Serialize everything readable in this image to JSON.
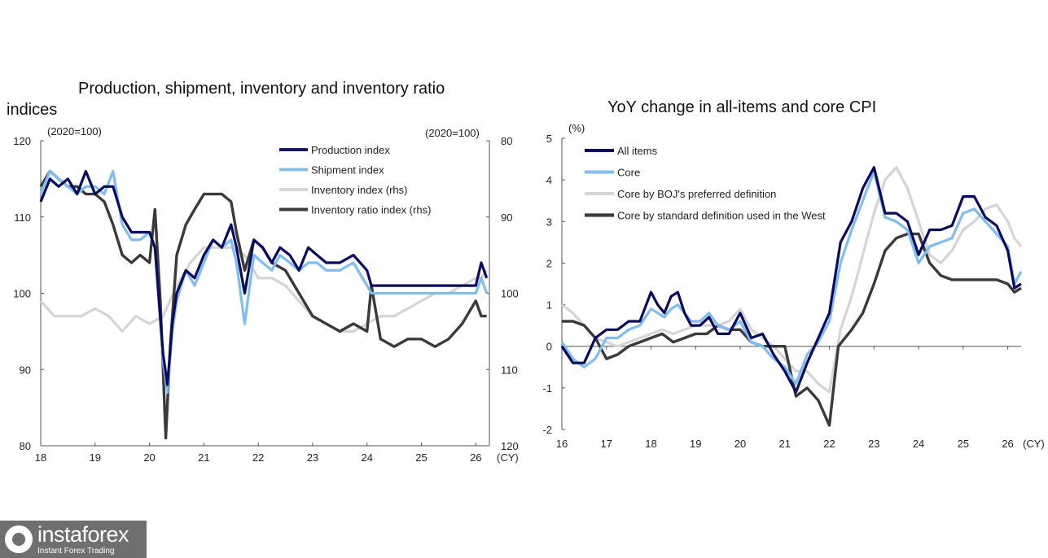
{
  "chart_data": [
    {
      "type": "line",
      "title": "Production, shipment, inventory and inventory ratio",
      "title_prefix": "indices",
      "left_unit": "(2020=100)",
      "right_unit": "(2020=100)",
      "x_unit": "(CY)",
      "xlim": [
        2018,
        2026.25
      ],
      "ylim_left": [
        80,
        120
      ],
      "ylim_right_inverted": [
        80,
        120
      ],
      "x_ticks": [
        {
          "v": 2018,
          "label": "18"
        },
        {
          "v": 2019,
          "label": "19"
        },
        {
          "v": 2020,
          "label": "20"
        },
        {
          "v": 2021,
          "label": "21"
        },
        {
          "v": 2022,
          "label": "22"
        },
        {
          "v": 2023,
          "label": "23"
        },
        {
          "v": 2024,
          "label": "24"
        },
        {
          "v": 2025,
          "label": "25"
        },
        {
          "v": 2026,
          "label": "26"
        }
      ],
      "y_ticks_left": [
        {
          "v": 80,
          "label": "80"
        },
        {
          "v": 90,
          "label": "90"
        },
        {
          "v": 100,
          "label": "100"
        },
        {
          "v": 110,
          "label": "110"
        },
        {
          "v": 120,
          "label": "120"
        }
      ],
      "y_ticks_right": [
        {
          "v": 80,
          "label": "80"
        },
        {
          "v": 90,
          "label": "90"
        },
        {
          "v": 100,
          "label": "100"
        },
        {
          "v": 110,
          "label": "110"
        },
        {
          "v": 120,
          "label": "120"
        }
      ],
      "series": [
        {
          "name": "Production index",
          "color": "#0a0a5e",
          "width": 3.2,
          "axis": "left",
          "x": [
            2018,
            2018.17,
            2018.33,
            2018.5,
            2018.67,
            2018.83,
            2019,
            2019.17,
            2019.33,
            2019.5,
            2019.67,
            2019.83,
            2020,
            2020.1,
            2020.25,
            2020.33,
            2020.42,
            2020.5,
            2020.67,
            2020.83,
            2021,
            2021.17,
            2021.33,
            2021.5,
            2021.6,
            2021.75,
            2021.92,
            2022.08,
            2022.25,
            2022.4,
            2022.58,
            2022.75,
            2022.92,
            2023.08,
            2023.25,
            2023.5,
            2023.75,
            2024,
            2024.08,
            2024.25,
            2024.5,
            2024.75,
            2025,
            2025.25,
            2025.5,
            2025.75,
            2026,
            2026.1,
            2026.2
          ],
          "values": [
            112,
            115,
            114,
            115,
            113,
            116,
            113,
            114,
            114,
            110,
            108,
            108,
            108,
            106,
            92,
            88,
            96,
            100,
            103,
            102,
            105,
            107,
            106,
            109,
            106,
            100,
            107,
            106,
            104,
            106,
            105,
            103,
            106,
            105,
            104,
            104,
            105,
            103,
            101,
            101,
            101,
            101,
            101,
            101,
            101,
            101,
            101,
            104,
            102
          ]
        },
        {
          "name": "Shipment index",
          "color": "#7fbdf0",
          "width": 3.2,
          "axis": "left",
          "x": [
            2018,
            2018.17,
            2018.33,
            2018.5,
            2018.67,
            2018.83,
            2019,
            2019.17,
            2019.33,
            2019.5,
            2019.67,
            2019.83,
            2020,
            2020.1,
            2020.25,
            2020.33,
            2020.42,
            2020.5,
            2020.67,
            2020.83,
            2021,
            2021.17,
            2021.33,
            2021.5,
            2021.6,
            2021.75,
            2021.92,
            2022.08,
            2022.25,
            2022.4,
            2022.58,
            2022.75,
            2022.92,
            2023.08,
            2023.25,
            2023.5,
            2023.75,
            2024,
            2024.08,
            2024.25,
            2024.5,
            2024.75,
            2025,
            2025.25,
            2025.5,
            2025.75,
            2026,
            2026.1,
            2026.2
          ],
          "values": [
            113,
            116,
            115,
            114,
            113,
            114,
            114,
            113,
            116,
            109,
            107,
            107,
            108,
            106,
            91,
            87,
            95,
            99,
            103,
            101,
            104,
            107,
            106,
            107,
            104,
            96,
            105,
            104,
            103,
            105,
            104,
            103,
            104,
            104,
            103,
            103,
            104,
            101,
            100,
            100,
            100,
            100,
            100,
            100,
            100,
            100,
            100,
            102,
            100
          ]
        },
        {
          "name": "Inventory index (rhs)",
          "color": "#d5d5d5",
          "width": 3.2,
          "axis": "right",
          "x": [
            2018,
            2018.25,
            2018.5,
            2018.75,
            2019,
            2019.25,
            2019.5,
            2019.75,
            2020,
            2020.25,
            2020.5,
            2020.75,
            2021,
            2021.25,
            2021.5,
            2021.75,
            2022,
            2022.25,
            2022.5,
            2022.75,
            2023,
            2023.25,
            2023.5,
            2023.75,
            2024,
            2024.25,
            2024.5,
            2024.75,
            2025,
            2025.25,
            2025.5,
            2025.75,
            2026,
            2026.1,
            2026.2
          ],
          "values": [
            101,
            103,
            103,
            103,
            102,
            103,
            105,
            103,
            104,
            103,
            99,
            96,
            94,
            94,
            94,
            95,
            98,
            98,
            99,
            101,
            103,
            104,
            105,
            105,
            104,
            103,
            103,
            102,
            101,
            100,
            100,
            99,
            98,
            98,
            97
          ]
        },
        {
          "name": "Inventory ratio index (rhs)",
          "color": "#3a3a3a",
          "width": 3.4,
          "axis": "right",
          "x": [
            2018,
            2018.17,
            2018.33,
            2018.5,
            2018.67,
            2018.83,
            2019,
            2019.17,
            2019.33,
            2019.5,
            2019.67,
            2019.83,
            2020,
            2020.1,
            2020.2,
            2020.3,
            2020.38,
            2020.5,
            2020.67,
            2020.83,
            2021,
            2021.17,
            2021.33,
            2021.5,
            2021.6,
            2021.75,
            2021.92,
            2022.08,
            2022.25,
            2022.5,
            2022.75,
            2023,
            2023.25,
            2023.5,
            2023.75,
            2024,
            2024.08,
            2024.25,
            2024.5,
            2024.75,
            2025,
            2025.25,
            2025.5,
            2025.75,
            2026,
            2026.1,
            2026.2
          ],
          "values": [
            86,
            84,
            85,
            86,
            86,
            87,
            87,
            88,
            91,
            95,
            96,
            95,
            96,
            89,
            101,
            119,
            107,
            95,
            91,
            89,
            87,
            87,
            87,
            88,
            92,
            97,
            93,
            94,
            96,
            97,
            100,
            103,
            104,
            105,
            104,
            105,
            99,
            106,
            107,
            106,
            106,
            107,
            106,
            104,
            101,
            103,
            103
          ]
        }
      ]
    },
    {
      "type": "line",
      "title": "YoY change in all-items and core CPI",
      "left_unit": "(%)",
      "x_unit": "(CY)",
      "xlim": [
        2016,
        2026.3
      ],
      "ylim": [
        -2,
        5
      ],
      "x_ticks": [
        {
          "v": 2016,
          "label": "16"
        },
        {
          "v": 2017,
          "label": "17"
        },
        {
          "v": 2018,
          "label": "18"
        },
        {
          "v": 2019,
          "label": "19"
        },
        {
          "v": 2020,
          "label": "20"
        },
        {
          "v": 2021,
          "label": "21"
        },
        {
          "v": 2022,
          "label": "22"
        },
        {
          "v": 2023,
          "label": "23"
        },
        {
          "v": 2024,
          "label": "24"
        },
        {
          "v": 2025,
          "label": "25"
        },
        {
          "v": 2026,
          "label": "26"
        }
      ],
      "y_ticks": [
        {
          "v": -2,
          "label": "-2"
        },
        {
          "v": -1,
          "label": "-1"
        },
        {
          "v": 0,
          "label": "0"
        },
        {
          "v": 1,
          "label": "1"
        },
        {
          "v": 2,
          "label": "2"
        },
        {
          "v": 3,
          "label": "3"
        },
        {
          "v": 4,
          "label": "4"
        },
        {
          "v": 5,
          "label": "5"
        }
      ],
      "series": [
        {
          "name": "All items",
          "color": "#0a0a5e",
          "width": 3.2,
          "x": [
            2016,
            2016.25,
            2016.5,
            2016.75,
            2017,
            2017.25,
            2017.5,
            2017.75,
            2018,
            2018.15,
            2018.3,
            2018.45,
            2018.6,
            2018.75,
            2018.9,
            2019.1,
            2019.3,
            2019.5,
            2019.75,
            2020,
            2020.25,
            2020.5,
            2020.75,
            2021,
            2021.25,
            2021.5,
            2021.75,
            2022,
            2022.25,
            2022.5,
            2022.75,
            2023,
            2023.25,
            2023.5,
            2023.75,
            2024,
            2024.25,
            2024.5,
            2024.75,
            2025,
            2025.25,
            2025.5,
            2025.75,
            2026,
            2026.15,
            2026.3
          ],
          "values": [
            0,
            -0.4,
            -0.4,
            0.2,
            0.4,
            0.4,
            0.6,
            0.6,
            1.3,
            1.0,
            0.8,
            1.2,
            1.3,
            0.8,
            0.5,
            0.5,
            0.7,
            0.3,
            0.3,
            0.8,
            0.2,
            0.3,
            -0.2,
            -0.6,
            -1.1,
            -0.4,
            0.2,
            0.8,
            2.5,
            3.0,
            3.8,
            4.3,
            3.2,
            3.2,
            3.0,
            2.2,
            2.8,
            2.8,
            2.9,
            3.6,
            3.6,
            3.1,
            2.9,
            2.3,
            1.4,
            1.5
          ]
        },
        {
          "name": "Core",
          "color": "#7fbdf0",
          "width": 3.2,
          "x": [
            2016,
            2016.25,
            2016.5,
            2016.75,
            2017,
            2017.25,
            2017.5,
            2017.75,
            2018,
            2018.15,
            2018.3,
            2018.45,
            2018.6,
            2018.75,
            2018.9,
            2019.1,
            2019.3,
            2019.5,
            2019.75,
            2020,
            2020.25,
            2020.5,
            2020.75,
            2021,
            2021.25,
            2021.5,
            2021.75,
            2022,
            2022.25,
            2022.5,
            2022.75,
            2023,
            2023.25,
            2023.5,
            2023.75,
            2024,
            2024.25,
            2024.5,
            2024.75,
            2025,
            2025.25,
            2025.5,
            2025.75,
            2026,
            2026.15,
            2026.3
          ],
          "values": [
            0.1,
            -0.3,
            -0.5,
            -0.3,
            0.2,
            0.2,
            0.4,
            0.5,
            0.9,
            0.8,
            0.7,
            0.9,
            1.0,
            0.8,
            0.6,
            0.6,
            0.8,
            0.5,
            0.4,
            0.6,
            0.1,
            0.0,
            -0.3,
            -0.5,
            -0.9,
            -0.2,
            0.1,
            0.6,
            2.0,
            2.8,
            3.5,
            4.2,
            3.1,
            3.0,
            2.8,
            2.0,
            2.4,
            2.5,
            2.6,
            3.2,
            3.3,
            3.0,
            2.7,
            2.4,
            1.5,
            1.8
          ]
        },
        {
          "name": "Core by BOJ's preferred definition",
          "color": "#d5d5d5",
          "width": 3.2,
          "x": [
            2016,
            2016.25,
            2016.5,
            2016.75,
            2017,
            2017.25,
            2017.5,
            2017.75,
            2018,
            2018.25,
            2018.5,
            2018.75,
            2019,
            2019.25,
            2019.5,
            2019.75,
            2020,
            2020.25,
            2020.5,
            2020.75,
            2021,
            2021.25,
            2021.5,
            2021.75,
            2022,
            2022.25,
            2022.5,
            2022.75,
            2023,
            2023.25,
            2023.5,
            2023.75,
            2024,
            2024.25,
            2024.5,
            2024.75,
            2025,
            2025.25,
            2025.5,
            2025.75,
            2026,
            2026.15,
            2026.3
          ],
          "values": [
            1.0,
            0.8,
            0.5,
            0.2,
            0.1,
            0.0,
            0.1,
            0.2,
            0.3,
            0.4,
            0.3,
            0.4,
            0.5,
            0.5,
            0.5,
            0.6,
            0.9,
            0.4,
            0.2,
            0.0,
            -0.3,
            -0.6,
            -0.6,
            -0.9,
            -1.1,
            0.4,
            1.2,
            2.2,
            3.2,
            4.0,
            4.3,
            3.8,
            3.0,
            2.2,
            2.0,
            2.3,
            2.8,
            3.0,
            3.3,
            3.4,
            3.0,
            2.6,
            2.4
          ]
        },
        {
          "name": "Core by standard definition used in the West",
          "color": "#3a3a3a",
          "width": 3.4,
          "x": [
            2016,
            2016.25,
            2016.5,
            2016.75,
            2017,
            2017.25,
            2017.5,
            2017.75,
            2018,
            2018.25,
            2018.5,
            2018.75,
            2019,
            2019.25,
            2019.5,
            2019.75,
            2020,
            2020.25,
            2020.5,
            2020.75,
            2021,
            2021.25,
            2021.5,
            2021.75,
            2022,
            2022.2,
            2022.5,
            2022.75,
            2023,
            2023.25,
            2023.5,
            2023.75,
            2024,
            2024.25,
            2024.5,
            2024.75,
            2025,
            2025.25,
            2025.5,
            2025.75,
            2026,
            2026.15,
            2026.3
          ],
          "values": [
            0.6,
            0.6,
            0.5,
            0.2,
            -0.3,
            -0.2,
            0.0,
            0.1,
            0.2,
            0.3,
            0.1,
            0.2,
            0.3,
            0.3,
            0.5,
            0.4,
            0.4,
            0.1,
            0.0,
            0.0,
            0.0,
            -1.2,
            -1.0,
            -1.3,
            -1.9,
            0.0,
            0.4,
            0.8,
            1.5,
            2.3,
            2.6,
            2.7,
            2.7,
            2.0,
            1.7,
            1.6,
            1.6,
            1.6,
            1.6,
            1.6,
            1.5,
            1.3,
            1.4
          ]
        }
      ]
    }
  ],
  "logo": {
    "brand": "instaforex",
    "tagline": "Instant Forex Trading"
  }
}
